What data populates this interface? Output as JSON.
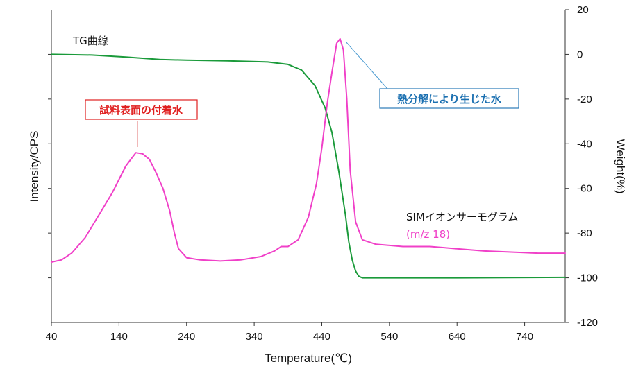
{
  "chart_data": {
    "type": "line",
    "xlabel": "Temperature(℃)",
    "ylabel_left": "Intensity/CPS",
    "ylabel_right": "Weight(%)",
    "xlim": [
      40,
      800
    ],
    "x_ticks": [
      40,
      140,
      240,
      340,
      440,
      540,
      640,
      740
    ],
    "y_right_lim": [
      -120,
      20
    ],
    "y_right_ticks": [
      20,
      0,
      -20,
      -40,
      -60,
      -80,
      -100,
      -120
    ],
    "y_left_tick_count": 6,
    "grid": false,
    "series": [
      {
        "name": "TG曲線",
        "axis": "right",
        "color": "#1a9a3a",
        "x": [
          40,
          100,
          150,
          200,
          240,
          300,
          360,
          390,
          410,
          430,
          445,
          455,
          465,
          475,
          480,
          485,
          490,
          495,
          500,
          520,
          560,
          640,
          720,
          800
        ],
        "y": [
          0,
          -0.3,
          -1.2,
          -2.3,
          -2.6,
          -2.9,
          -3.4,
          -4.5,
          -7,
          -14,
          -24,
          -35,
          -52,
          -72,
          -84,
          -92,
          -97,
          -99.4,
          -100,
          -100,
          -100,
          -100,
          -99.9,
          -99.8
        ]
      },
      {
        "name": "SIMイオンサーモグラム",
        "axis": "right",
        "color": "#f040c8",
        "x": [
          40,
          55,
          70,
          90,
          110,
          130,
          150,
          160,
          165,
          175,
          185,
          195,
          205,
          215,
          222,
          228,
          240,
          260,
          290,
          320,
          350,
          370,
          380,
          390,
          405,
          420,
          432,
          440,
          448,
          455,
          462,
          467,
          472,
          477,
          482,
          490,
          500,
          520,
          560,
          600,
          640,
          680,
          720,
          760,
          800
        ],
        "y": [
          -93,
          -92,
          -89,
          -82,
          -72,
          -62,
          -50,
          -46,
          -44,
          -44.5,
          -47,
          -53,
          -60,
          -70,
          -80,
          -87,
          -91,
          -92,
          -92.5,
          -92,
          -90.5,
          -88,
          -86,
          -86,
          -83,
          -73,
          -58,
          -42,
          -22,
          -8,
          5,
          7,
          2,
          -20,
          -52,
          -75,
          -83,
          -85,
          -86,
          -86,
          -87,
          -88,
          -88.5,
          -89,
          -89
        ]
      }
    ],
    "annotations": {
      "tg_label": "TG曲線",
      "sim_label": "SIMイオンサーモグラム",
      "sim_sub_label": "(m/z 18)",
      "box_left": "試料表面の付着水",
      "box_right": "熱分解により生じた水"
    }
  }
}
